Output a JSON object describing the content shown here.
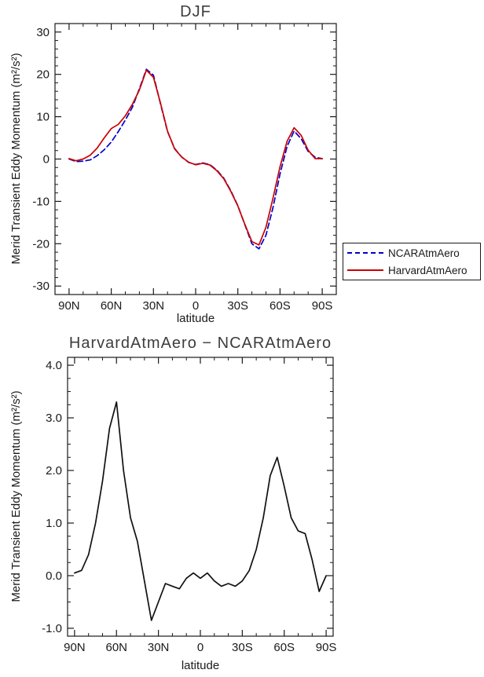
{
  "chart_data": [
    {
      "type": "line",
      "title": "DJF",
      "xlabel": "latitude",
      "ylabel": "Merid Transient Eddy Momentum (m²/s²)",
      "xlim": [
        100,
        -100
      ],
      "ylim": [
        -32,
        32
      ],
      "x_tick_values": [
        90,
        60,
        30,
        0,
        -30,
        -60,
        -90
      ],
      "x_tick_labels": [
        "90N",
        "60N",
        "30N",
        "0",
        "30S",
        "60S",
        "90S"
      ],
      "x_minor_step": 10,
      "y_tick_values": [
        -30,
        -20,
        -10,
        0,
        10,
        20,
        30
      ],
      "y_tick_labels": [
        "-30",
        "-20",
        "-10",
        "0",
        "10",
        "20",
        "30"
      ],
      "y_minor_step": 2,
      "axis_color": "#1a1a1a",
      "x": [
        90,
        85,
        80,
        75,
        70,
        65,
        60,
        55,
        50,
        45,
        40,
        35,
        30,
        25,
        20,
        15,
        10,
        5,
        0,
        -5,
        -10,
        -15,
        -20,
        -25,
        -30,
        -35,
        -40,
        -45,
        -50,
        -55,
        -60,
        -65,
        -70,
        -75,
        -80,
        -85,
        -90
      ],
      "series": [
        {
          "name": "NCARAtmAero",
          "color": "#0000cc",
          "style": "dashed",
          "dash": "7,4",
          "values": [
            0.0,
            -0.6,
            -0.5,
            -0.2,
            0.8,
            2.2,
            4.0,
            6.5,
            9.2,
            12.2,
            16.6,
            21.2,
            19.8,
            13.0,
            6.5,
            2.5,
            0.5,
            -0.8,
            -1.3,
            -0.9,
            -1.3,
            -2.6,
            -4.5,
            -7.5,
            -11.0,
            -15.5,
            -20.0,
            -21.2,
            -18.0,
            -11.5,
            -3.5,
            3.0,
            6.6,
            4.8,
            1.8,
            0.4,
            0.1
          ]
        },
        {
          "name": "HarvardAtmAero",
          "color": "#cc0000",
          "style": "solid",
          "dash": "",
          "values": [
            0.1,
            -0.4,
            0.0,
            0.9,
            2.6,
            5.0,
            7.2,
            8.2,
            10.2,
            12.9,
            16.3,
            21.0,
            19.3,
            13.2,
            6.6,
            2.4,
            0.5,
            -0.75,
            -1.35,
            -1.0,
            -1.4,
            -2.75,
            -4.65,
            -7.65,
            -11.1,
            -15.4,
            -19.5,
            -20.3,
            -16.1,
            -9.3,
            -1.8,
            4.2,
            7.4,
            5.6,
            2.1,
            0.1,
            0.1
          ]
        }
      ],
      "legend": {
        "position": "outside-right",
        "entries": [
          "NCARAtmAero",
          "HarvardAtmAero"
        ]
      }
    },
    {
      "type": "line",
      "title": "HarvardAtmAero − NCARAtmAero",
      "xlabel": "latitude",
      "ylabel": "Merid Transient Eddy Momentum (m²/s²)",
      "xlim": [
        95,
        -95
      ],
      "ylim": [
        -1.15,
        4.15
      ],
      "x_tick_values": [
        90,
        60,
        30,
        0,
        -30,
        -60,
        -90
      ],
      "x_tick_labels": [
        "90N",
        "60N",
        "30N",
        "0",
        "30S",
        "60S",
        "90S"
      ],
      "x_minor_step": 10,
      "y_tick_values": [
        -1,
        0,
        1,
        2,
        3,
        4
      ],
      "y_tick_labels": [
        "-1.0",
        "0.0",
        "1.0",
        "2.0",
        "3.0",
        "4.0"
      ],
      "y_minor_step": 0.25,
      "axis_color": "#1a1a1a",
      "x": [
        90,
        85,
        80,
        75,
        70,
        65,
        60,
        55,
        50,
        45,
        40,
        35,
        30,
        25,
        20,
        15,
        10,
        5,
        0,
        -5,
        -10,
        -15,
        -20,
        -25,
        -30,
        -35,
        -40,
        -45,
        -50,
        -55,
        -60,
        -65,
        -70,
        -75,
        -80,
        -85,
        -90
      ],
      "series": [
        {
          "name": "HarvardAtmAero − NCARAtmAero",
          "color": "#111111",
          "style": "solid",
          "dash": "",
          "values": [
            0.05,
            0.1,
            0.4,
            1.0,
            1.8,
            2.8,
            3.3,
            2.0,
            1.1,
            0.65,
            -0.1,
            -0.85,
            -0.5,
            -0.15,
            -0.2,
            -0.25,
            -0.05,
            0.05,
            -0.05,
            0.05,
            -0.1,
            -0.2,
            -0.15,
            -0.2,
            -0.1,
            0.1,
            0.5,
            1.1,
            1.9,
            2.25,
            1.7,
            1.1,
            0.85,
            0.8,
            0.3,
            -0.3,
            0.0
          ]
        }
      ],
      "legend": {
        "position": "none",
        "entries": []
      }
    }
  ]
}
